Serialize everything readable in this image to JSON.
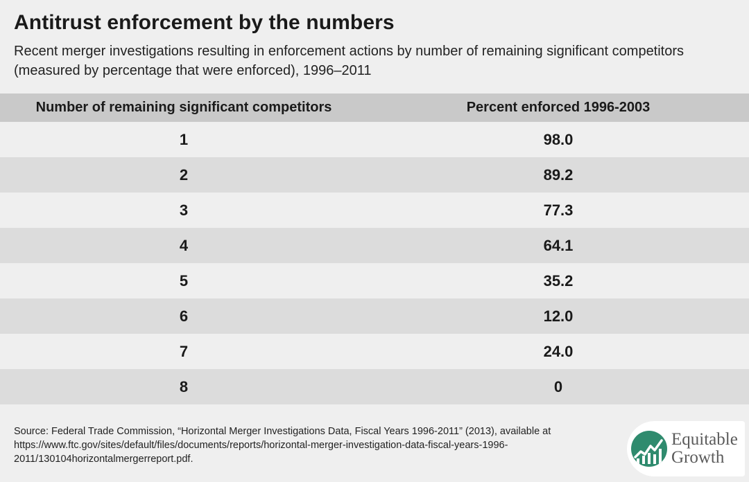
{
  "title": "Antitrust enforcement by the numbers",
  "subtitle": "Recent merger investigations resulting in enforcement actions by number of remaining significant competitors (measured by percentage that were enforced), 1996–2011",
  "source": "Source: Federal Trade Commission, “Horizontal Merger Investigations Data, Fiscal Years 1996-2011” (2013), available at https://www.ftc.gov/sites/default/files/documents/reports/horizontal-merger-investigation-data-fiscal-years-1996-2011/130104horizontalmergerreport.pdf.",
  "logo": {
    "line1": "Equitable",
    "line2": "Growth",
    "icon": "chart-line-icon",
    "color": "#2f8b6e"
  },
  "chart_data": {
    "type": "table",
    "columns": [
      "Number of remaining significant competitors",
      "Percent enforced 1996-2003"
    ],
    "rows": [
      [
        "1",
        "98.0"
      ],
      [
        "2",
        "89.2"
      ],
      [
        "3",
        "77.3"
      ],
      [
        "4",
        "64.1"
      ],
      [
        "5",
        "35.2"
      ],
      [
        "6",
        "12.0"
      ],
      [
        "7",
        "24.0"
      ],
      [
        "8",
        "0"
      ]
    ]
  }
}
